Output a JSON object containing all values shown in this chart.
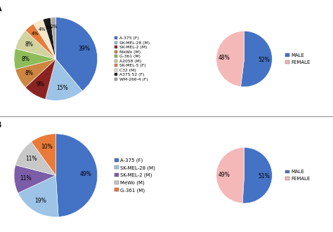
{
  "A_pie1": {
    "labels": [
      "A-375 (F)",
      "SK-MEL-28 (M)",
      "SK-MEL-2 (M)",
      "MeWo (M)",
      "G-361 (M)",
      "A2058 (M)",
      "SK-MEL-5 (F)",
      "C32 (M)",
      "A375.52 (F)",
      "WM-266-4 (F)"
    ],
    "values": [
      39,
      15,
      9,
      8,
      8,
      8,
      4,
      4,
      3,
      2
    ],
    "colors": [
      "#4472c4",
      "#9dc3e6",
      "#8b2323",
      "#cd8540",
      "#8fbc5a",
      "#d3d3a0",
      "#e87b3a",
      "#f5e6c8",
      "#1a1a1a",
      "#a8a8a8"
    ],
    "autopct_labels": [
      "39%",
      "15%",
      "9%",
      "8%",
      "8%",
      "8%",
      "4%",
      "4%",
      "3%",
      "2%"
    ]
  },
  "A_pie2": {
    "labels": [
      "MALE",
      "FEMALE"
    ],
    "values": [
      52,
      48
    ],
    "colors": [
      "#4472c4",
      "#f4b8b8"
    ],
    "autopct_labels": [
      "52%",
      "48%"
    ]
  },
  "B_pie1": {
    "labels": [
      "A-375 (F)",
      "SK-MEL-28 (M)",
      "SK-MEL-2 (M)",
      "MeWo (M)",
      "G-361 (M)"
    ],
    "values": [
      49,
      19,
      11,
      11,
      10
    ],
    "colors": [
      "#4472c4",
      "#9dc3e6",
      "#7b5ea7",
      "#c8c8c8",
      "#e87b3a"
    ],
    "autopct_labels": [
      "49%",
      "19%",
      "11%",
      "11%",
      "10%"
    ]
  },
  "B_pie2": {
    "labels": [
      "MALE",
      "FEMALE"
    ],
    "values": [
      51,
      49
    ],
    "colors": [
      "#4472c4",
      "#f4b8b8"
    ],
    "autopct_labels": [
      "51%",
      "49%"
    ]
  },
  "label_A": "A",
  "label_B": "B",
  "bg_color": "#ffffff"
}
